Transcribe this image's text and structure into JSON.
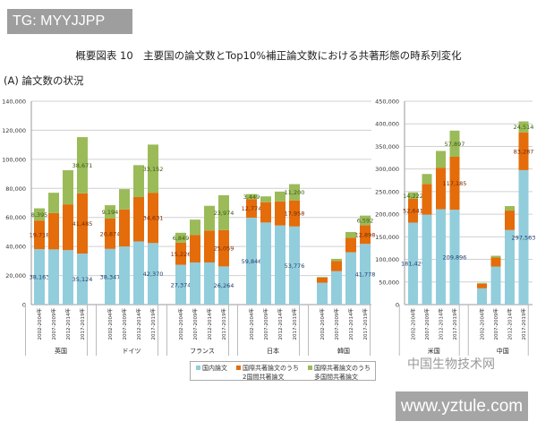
{
  "watermarks": {
    "top_left": "TG: MYYJJPP",
    "bottom_right": "www.yztule.com",
    "wechat": "中国生物技术网"
  },
  "title": "概要図表 10　主要国の論文数とTop10%補正論文数における共著形態の時系列変化",
  "subtitle": "(A) 論文数の状況",
  "legend": [
    {
      "label": "国内論文",
      "color": "#92cddc"
    },
    {
      "label": "国際共著論文のうち\n2国間共著論文",
      "color": "#e46c0a"
    },
    {
      "label": "国際共著論文のうち\n多国間共著論文",
      "color": "#9bbb59"
    }
  ],
  "chart_data": [
    {
      "type": "bar",
      "stacked": true,
      "ylim": [
        0,
        140000
      ],
      "yticks": [
        "0",
        "20,000",
        "40,000",
        "60,000",
        "80,000",
        "100,000",
        "120,000",
        "140,000"
      ],
      "grid": true,
      "periods": [
        "2002-2004年",
        "2007-2009年",
        "2012-2014年",
        "2017-2019年"
      ],
      "groups": [
        {
          "name": "英国",
          "bars": [
            [
              38163,
              19718,
              8395
            ],
            [
              38000,
              25000,
              14000
            ],
            [
              37500,
              31500,
              23500
            ],
            [
              35124,
              41485,
              38671
            ]
          ],
          "labels": [
            [
              "38,163",
              "19,718",
              "8,395"
            ],
            null,
            null,
            [
              "35,124",
              "41,485",
              "38,671"
            ]
          ]
        },
        {
          "name": "ドイツ",
          "bars": [
            [
              38347,
              20874,
              9194
            ],
            [
              40000,
              25500,
              14000
            ],
            [
              43500,
              30500,
              22000
            ],
            [
              42370,
              34631,
              33152
            ]
          ],
          "labels": [
            [
              "38,347",
              "20,874",
              "9,194"
            ],
            null,
            null,
            [
              "42,370",
              "34,631",
              "33,152"
            ]
          ]
        },
        {
          "name": "フランス",
          "bars": [
            [
              27374,
              15226,
              6849
            ],
            [
              29000,
              19000,
              10500
            ],
            [
              29000,
              22000,
              17000
            ],
            [
              26264,
              25059,
              23974
            ]
          ],
          "labels": [
            [
              "27,374",
              "15,226",
              "6,849"
            ],
            null,
            null,
            [
              "26,264",
              "25,059",
              "23,974"
            ]
          ]
        },
        {
          "name": "日本",
          "bars": [
            [
              59846,
              12774,
              3449
            ],
            [
              56500,
              14000,
              4000
            ],
            [
              54500,
              16500,
              6800
            ],
            [
              53776,
              17958,
              11200
            ]
          ],
          "labels": [
            [
              "59,846",
              "12,774",
              "3,449"
            ],
            null,
            null,
            [
              "53,776",
              "17,958",
              "11,200"
            ]
          ]
        },
        {
          "name": "韓国",
          "bars": [
            [
              15000,
              3500,
              500
            ],
            [
              23000,
              7000,
              1500
            ],
            [
              36000,
              10000,
              4000
            ],
            [
              41778,
              12898,
              6592
            ]
          ],
          "labels": [
            null,
            null,
            null,
            [
              "41,778",
              "12,898",
              "6,592"
            ]
          ]
        }
      ]
    },
    {
      "type": "bar",
      "stacked": true,
      "ylim": [
        0,
        450000
      ],
      "yticks": [
        "0",
        "50,000",
        "100,000",
        "150,000",
        "200,000",
        "250,000",
        "300,000",
        "350,000",
        "400,000",
        "450,000"
      ],
      "grid": true,
      "periods": [
        "2002-2004年",
        "2007-2009年",
        "2012-2014年",
        "2017-2019年"
      ],
      "groups": [
        {
          "name": "米国",
          "bars": [
            [
              181429,
              52641,
              14222
            ],
            [
              199000,
              68000,
              22000
            ],
            [
              211000,
              92000,
              37000
            ],
            [
              209896,
              117185,
              57897
            ]
          ],
          "labels": [
            [
              "181,429",
              "52,641",
              "14,222"
            ],
            null,
            null,
            [
              "209,896",
              "117,185",
              "57,897"
            ]
          ]
        },
        {
          "name": "中国",
          "bars": [
            [
              36000,
              10000,
              2000
            ],
            [
              84000,
              20000,
              4000
            ],
            [
              165000,
              43000,
              10000
            ],
            [
              297563,
              83287,
              24514
            ]
          ],
          "labels": [
            null,
            null,
            null,
            [
              "297,563",
              "83,287",
              "24,514"
            ]
          ]
        }
      ]
    }
  ]
}
